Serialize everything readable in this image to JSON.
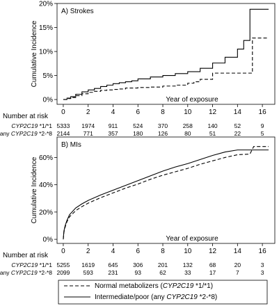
{
  "chart_data": [
    {
      "type": "line",
      "title": "A) Strokes",
      "xlabel": "Year of exposure",
      "ylabel": "Cumulative Incidence",
      "xlim": [
        -0.5,
        17
      ],
      "ylim": [
        -1,
        20
      ],
      "xticks": [
        0,
        2,
        4,
        6,
        8,
        10,
        12,
        14,
        16
      ],
      "yticks": [
        0,
        5,
        10,
        15,
        20
      ],
      "ytick_labels": [
        "0%",
        "5%",
        "10%",
        "15%",
        "20%"
      ],
      "step": true,
      "series": [
        {
          "name": "Normal metabolizers (CYP2C19 *1/*1)",
          "style": "dashed",
          "points": [
            [
              0,
              0
            ],
            [
              0.3,
              0.2
            ],
            [
              0.6,
              0.4
            ],
            [
              1,
              0.8
            ],
            [
              1.5,
              1.2
            ],
            [
              2,
              1.5
            ],
            [
              2.5,
              1.7
            ],
            [
              3,
              1.9
            ],
            [
              3.5,
              2.0
            ],
            [
              4,
              2.1
            ],
            [
              4.5,
              2.2
            ],
            [
              5,
              2.4
            ],
            [
              6,
              2.5
            ],
            [
              7,
              2.6
            ],
            [
              8,
              2.8
            ],
            [
              9,
              3.0
            ],
            [
              10,
              3.4
            ],
            [
              10.5,
              3.7
            ],
            [
              11,
              4.2
            ],
            [
              12,
              5.5
            ],
            [
              15,
              5.5
            ],
            [
              15.2,
              12.8
            ],
            [
              16.5,
              12.8
            ]
          ]
        },
        {
          "name": "Intermediate/poor (any CYP2C19 *2-*8)",
          "style": "solid",
          "points": [
            [
              0,
              0
            ],
            [
              0.3,
              0.3
            ],
            [
              0.6,
              0.6
            ],
            [
              1,
              1.1
            ],
            [
              1.5,
              1.6
            ],
            [
              2,
              2.0
            ],
            [
              2.5,
              2.3
            ],
            [
              3,
              2.7
            ],
            [
              3.5,
              3.0
            ],
            [
              4,
              3.3
            ],
            [
              4.5,
              3.5
            ],
            [
              5,
              3.7
            ],
            [
              5.5,
              3.9
            ],
            [
              6,
              4.3
            ],
            [
              7,
              4.7
            ],
            [
              8,
              5.0
            ],
            [
              9,
              5.4
            ],
            [
              10,
              5.8
            ],
            [
              11,
              6.5
            ],
            [
              12,
              7.6
            ],
            [
              13,
              8.8
            ],
            [
              14,
              10.5
            ],
            [
              14.5,
              12.3
            ],
            [
              15,
              18.8
            ],
            [
              16.5,
              18.8
            ]
          ]
        }
      ],
      "at_risk": {
        "header": "Number at risk",
        "rows": [
          {
            "label": "CYP2C19 *1/*1",
            "label_parts": [
              "CYP2C19",
              " *1/*1"
            ],
            "values": [
              "5333",
              "1974",
              "911",
              "524",
              "370",
              "258",
              "140",
              "52",
              "9"
            ]
          },
          {
            "label": "any CYP2C19 *2-*8",
            "label_parts": [
              "any ",
              "CYP2C19",
              " *2-*8"
            ],
            "values": [
              "2144",
              "771",
              "357",
              "180",
              "126",
              "80",
              "51",
              "22",
              "5"
            ]
          }
        ]
      }
    },
    {
      "type": "line",
      "title": "B) MIs",
      "xlabel": "Year of exposure",
      "ylabel": "Cumulative Incidence",
      "xlim": [
        -0.5,
        17
      ],
      "ylim": [
        -3,
        75
      ],
      "xticks": [
        0,
        2,
        4,
        6,
        8,
        10,
        12,
        14,
        16
      ],
      "yticks": [
        0,
        20,
        40,
        60
      ],
      "ytick_labels": [
        "0%",
        "20%",
        "40%",
        "60%"
      ],
      "step": false,
      "series": [
        {
          "name": "Normal metabolizers (CYP2C19 *1/*1)",
          "style": "dashed",
          "points": [
            [
              0,
              0
            ],
            [
              0.05,
              5
            ],
            [
              0.15,
              9
            ],
            [
              0.3,
              13
            ],
            [
              0.5,
              16.5
            ],
            [
              1,
              21
            ],
            [
              1.5,
              24
            ],
            [
              2,
              26.5
            ],
            [
              3,
              30.5
            ],
            [
              4,
              34
            ],
            [
              5,
              37.5
            ],
            [
              6,
              40.5
            ],
            [
              7,
              44
            ],
            [
              8,
              47
            ],
            [
              9,
              49.5
            ],
            [
              10,
              52
            ],
            [
              11,
              55
            ],
            [
              12,
              57.5
            ],
            [
              13,
              60
            ],
            [
              14,
              62
            ],
            [
              15,
              62.5
            ],
            [
              15.3,
              68
            ],
            [
              16.5,
              68
            ]
          ]
        },
        {
          "name": "Intermediate/poor (any CYP2C19 *2-*8)",
          "style": "solid",
          "points": [
            [
              0,
              0
            ],
            [
              0.05,
              6
            ],
            [
              0.15,
              10
            ],
            [
              0.3,
              14
            ],
            [
              0.5,
              18
            ],
            [
              1,
              23
            ],
            [
              1.5,
              26
            ],
            [
              2,
              28.5
            ],
            [
              3,
              32.5
            ],
            [
              4,
              36
            ],
            [
              5,
              39.5
            ],
            [
              6,
              43
            ],
            [
              7,
              46.5
            ],
            [
              8,
              50
            ],
            [
              9,
              53
            ],
            [
              10,
              55.5
            ],
            [
              11,
              58.5
            ],
            [
              12,
              61.5
            ],
            [
              13,
              64
            ],
            [
              14,
              65.5
            ],
            [
              15,
              65.5
            ],
            [
              16.5,
              65.5
            ]
          ]
        }
      ],
      "at_risk": {
        "header": "Number at risk",
        "rows": [
          {
            "label": "CYP2C19 *1/*1",
            "label_parts": [
              "CYP2C19",
              " *1/*1"
            ],
            "values": [
              "5255",
              "1619",
              "645",
              "306",
              "201",
              "132",
              "68",
              "20",
              "3"
            ]
          },
          {
            "label": "any CYP2C19 *2-*8",
            "label_parts": [
              "any ",
              "CYP2C19",
              " *2-*8"
            ],
            "values": [
              "2099",
              "593",
              "231",
              "93",
              "62",
              "33",
              "17",
              "7",
              "3"
            ]
          }
        ]
      }
    }
  ],
  "legend": {
    "items": [
      {
        "style": "dashed",
        "label_parts": [
          "Normal metabolizers (",
          "CYP2C19",
          " *1/*1)"
        ]
      },
      {
        "style": "solid",
        "label_parts": [
          "Intermediate/poor (any ",
          "CYP2C19",
          " *2-*8)"
        ]
      }
    ]
  }
}
